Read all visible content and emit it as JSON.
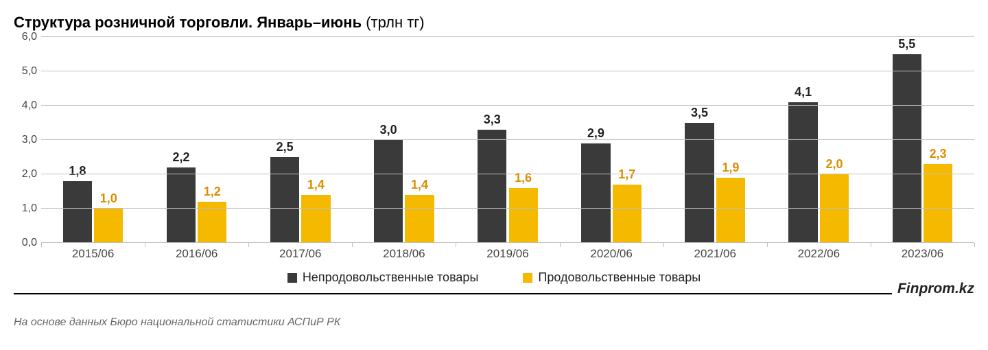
{
  "title_bold": "Структура розничной торговли. Январь–июнь",
  "title_rest": " (трлн тг)",
  "chart": {
    "type": "bar",
    "background_color": "#ffffff",
    "grid_color": "#bfbfbf",
    "label_fontsize": 18,
    "axis_fontsize": 17,
    "ylim_min": 0,
    "ylim_max": 6,
    "ytick_step": 1,
    "yticks": [
      "0,0",
      "1,0",
      "2,0",
      "3,0",
      "4,0",
      "5,0",
      "6,0"
    ],
    "categories": [
      "2015/06",
      "2016/06",
      "2017/06",
      "2018/06",
      "2019/06",
      "2020/06",
      "2021/06",
      "2022/06",
      "2023/06"
    ],
    "series1_name": "Непродовольственные товары",
    "series1_color": "#3a3a3a",
    "series1_values": [
      1.8,
      2.2,
      2.5,
      3.0,
      3.3,
      2.9,
      3.5,
      4.1,
      5.5
    ],
    "series1_labels": [
      "1,8",
      "2,2",
      "2,5",
      "3,0",
      "3,3",
      "2,9",
      "3,5",
      "4,1",
      "5,5"
    ],
    "series2_name": "Продовольственные товары",
    "series2_color": "#f5b900",
    "series2_label_color": "#d98f00",
    "series2_values": [
      1.0,
      1.2,
      1.4,
      1.4,
      1.6,
      1.7,
      1.9,
      2.0,
      2.3
    ],
    "series2_labels": [
      "1,0",
      "1,2",
      "1,4",
      "1,4",
      "1,6",
      "1,7",
      "1,9",
      "2,0",
      "2,3"
    ],
    "bar_width_pct": 28,
    "bar_gap_pct": 2
  },
  "brand": "Finprom.kz",
  "source": "На основе данных Бюро национальной статистики АСПиР РК"
}
